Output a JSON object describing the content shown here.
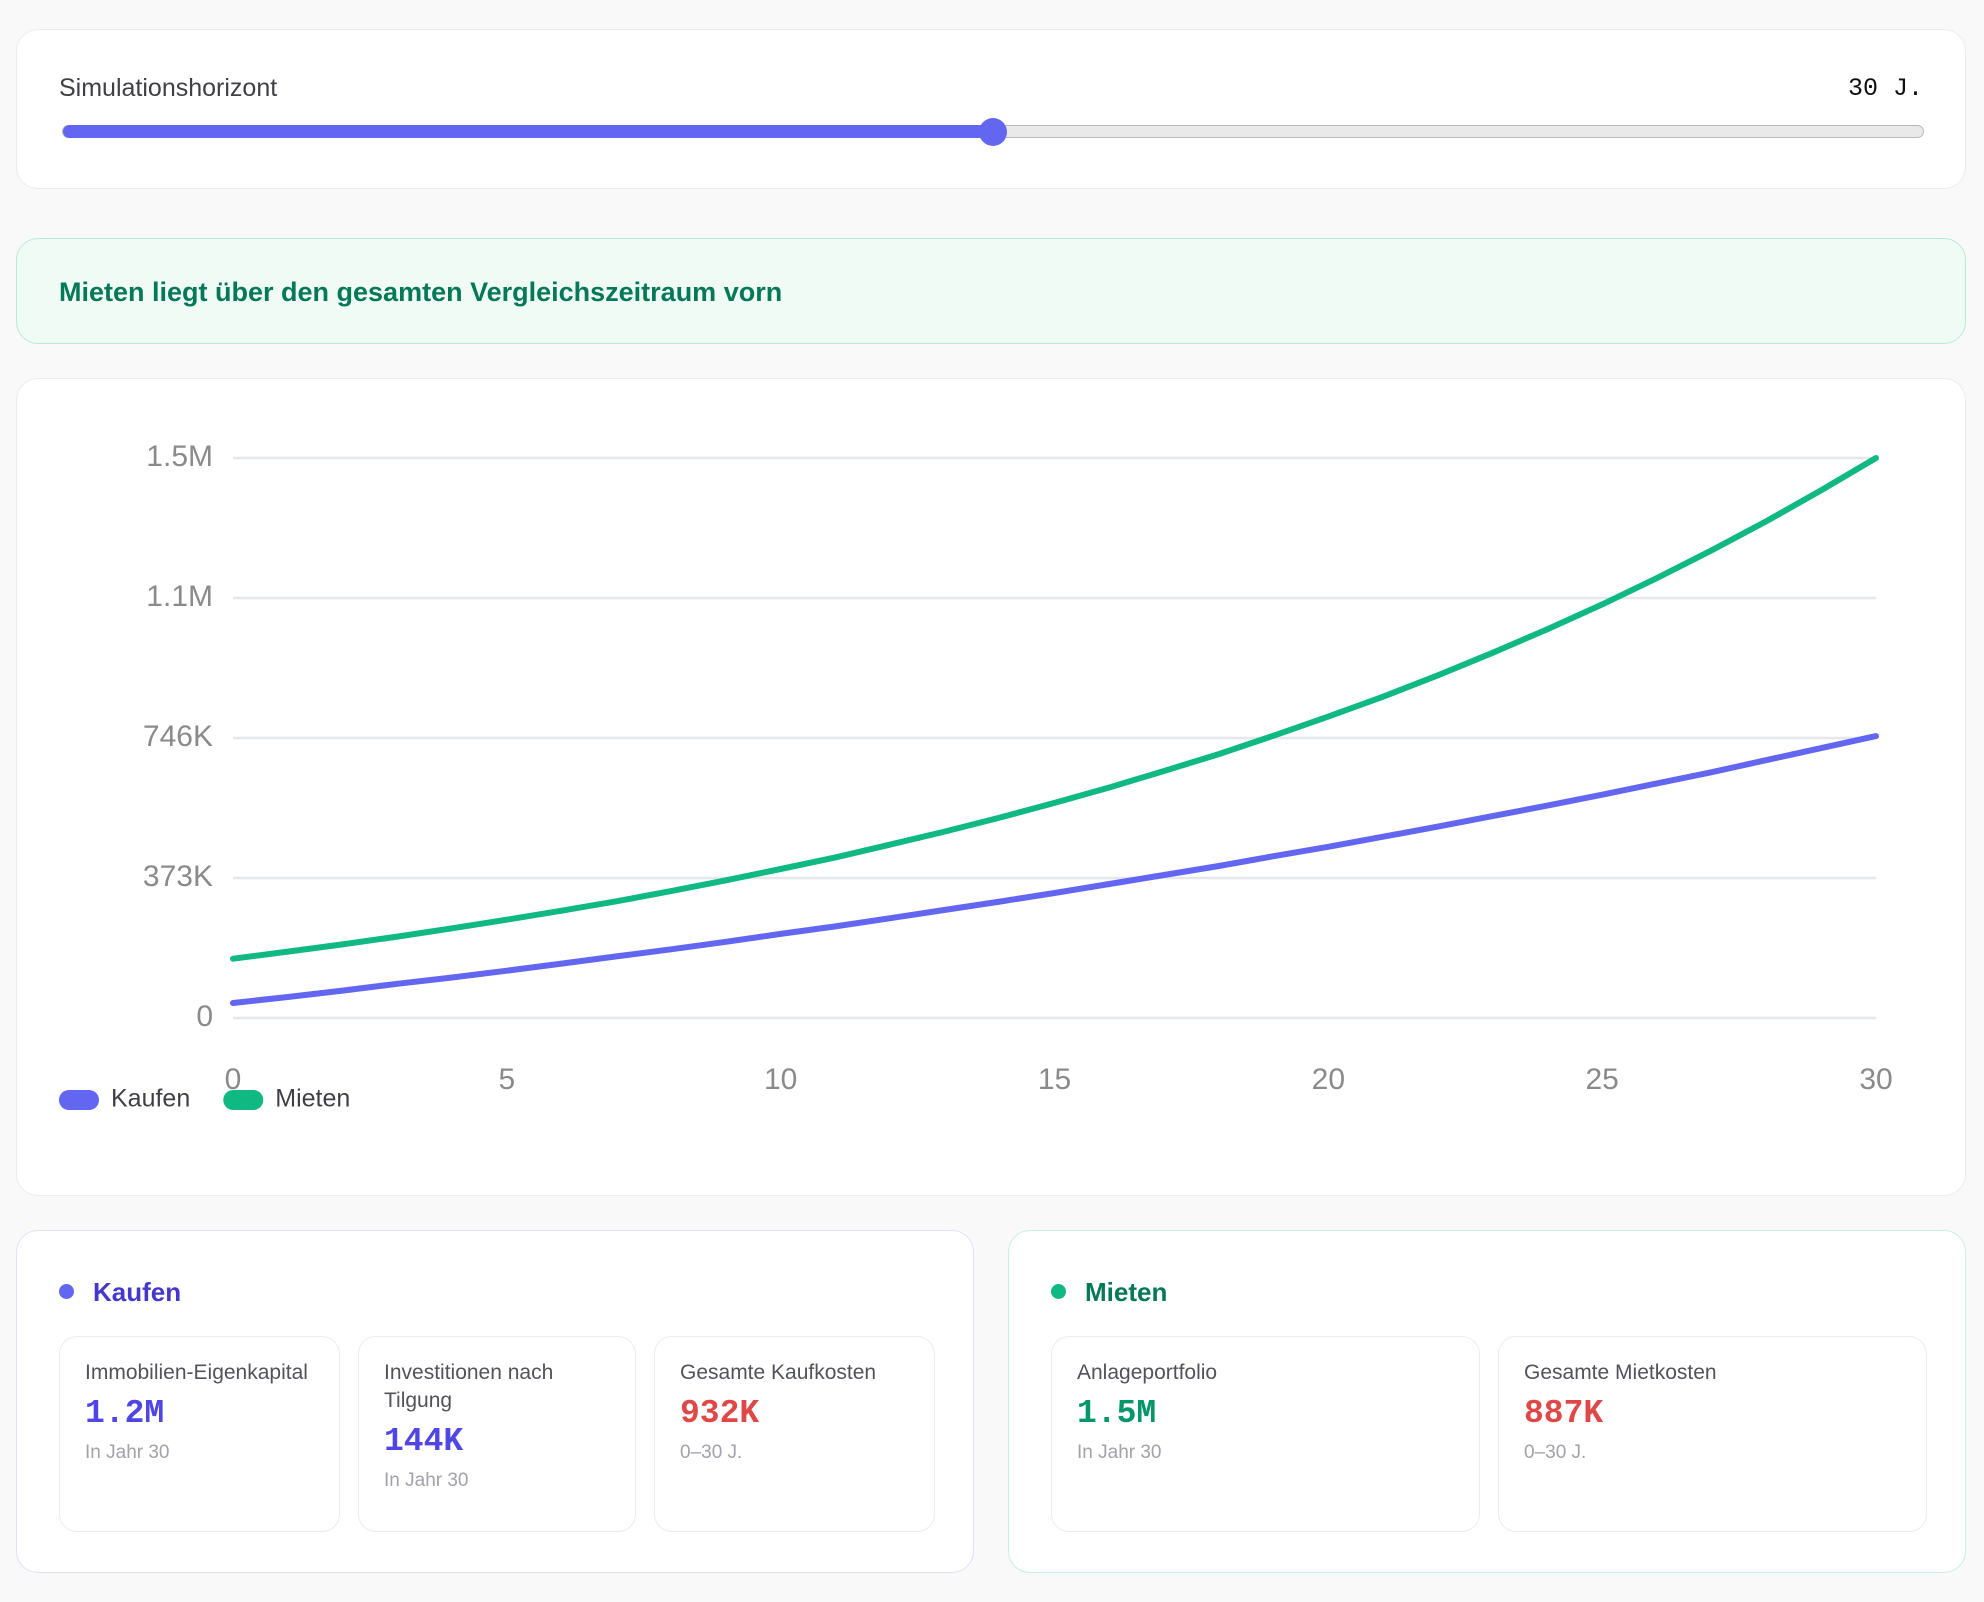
{
  "slider": {
    "label": "Simulationshorizont",
    "value_label": "30 J.",
    "value": 30,
    "range": [
      0,
      60
    ]
  },
  "banner": "Mieten liegt über den gesamten Vergleichszeitraum vorn",
  "chart_data": {
    "type": "line",
    "x": [
      0,
      1,
      2,
      3,
      4,
      5,
      6,
      7,
      8,
      9,
      10,
      11,
      12,
      13,
      14,
      15,
      16,
      17,
      18,
      19,
      20,
      21,
      22,
      23,
      24,
      25,
      26,
      27,
      28,
      29,
      30
    ],
    "series": [
      {
        "name": "Kaufen",
        "color": "#6366f1",
        "values": [
          40000,
          56000,
          73000,
          91000,
          108000,
          126000,
          145000,
          164000,
          183000,
          203000,
          224000,
          244000,
          266000,
          288000,
          310000,
          333000,
          357000,
          381000,
          405000,
          431000,
          456000,
          483000,
          510000,
          538000,
          566000,
          595000,
          625000,
          655000,
          687000,
          719000,
          751000
        ]
      },
      {
        "name": "Mieten",
        "color": "#10b981",
        "values": [
          158000,
          177000,
          196000,
          217000,
          239000,
          262000,
          286000,
          311000,
          338000,
          367000,
          397000,
          428000,
          462000,
          497000,
          534000,
          573000,
          614000,
          658000,
          703000,
          752000,
          803000,
          856000,
          913000,
          973000,
          1036000,
          1102000,
          1172000,
          1246000,
          1324000,
          1406000,
          1492000
        ]
      }
    ],
    "xlim": [
      0,
      30
    ],
    "xticks": [
      0,
      5,
      10,
      15,
      20,
      25,
      30
    ],
    "ylim": [
      0,
      1492000
    ],
    "yticks": [
      0,
      {
        "value": 373000,
        "label": "373K"
      },
      {
        "value": 746000,
        "label": "746K"
      },
      {
        "value": 1119000,
        "label": "1.1M"
      },
      {
        "value": 1492000,
        "label": "1.5M"
      }
    ],
    "grid": true,
    "legend": "bottom-left"
  },
  "summary": [
    {
      "title": "Kaufen",
      "color": "#6366f1",
      "title_color": "#4338ca",
      "border": "#e0e0fa",
      "metrics": [
        {
          "label": "Immobilien-Eigenkapital",
          "value": "1.2M",
          "color": "#4f46e5",
          "note": "In Jahr 30"
        },
        {
          "label": "Investitionen nach Tilgung",
          "value": "144K",
          "color": "#4f46e5",
          "note": "In Jahr 30"
        },
        {
          "label": "Gesamte Kaufkosten",
          "value": "932K",
          "color": "#e04848",
          "note": "0–30 J."
        }
      ]
    },
    {
      "title": "Mieten",
      "color": "#10b981",
      "title_color": "#047857",
      "border": "#c8f0de",
      "metrics": [
        {
          "label": "Anlageportfolio",
          "value": "1.5M",
          "color": "#059669",
          "note": "In Jahr 30"
        },
        {
          "label": "Gesamte Mietkosten",
          "value": "887K",
          "color": "#e04848",
          "note": "0–30 J."
        }
      ]
    }
  ]
}
